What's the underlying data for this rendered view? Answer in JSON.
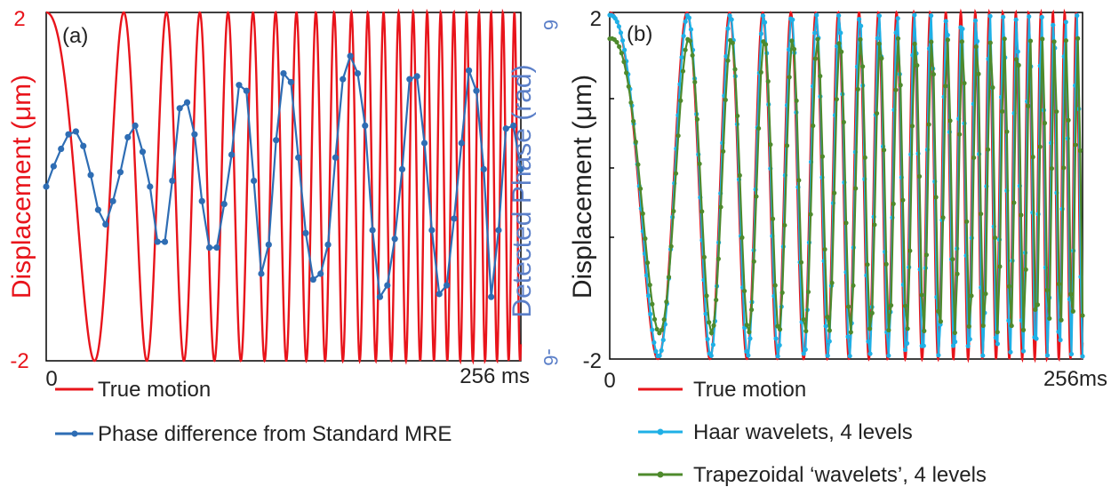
{
  "chart_data": [
    {
      "type": "line",
      "panel_label": "(a)",
      "ylabel_left": "Displacement (μm)",
      "ylabel_right": "Detected Phase (rad)",
      "x_tick_start": "0",
      "x_tick_end": "256 ms",
      "xlim": [
        0,
        256
      ],
      "ylim_left": [
        -2,
        2
      ],
      "ylim_right": [
        -6,
        6
      ],
      "y_ticks_left": [
        "2",
        "-2"
      ],
      "y_ticks_right": [
        "6",
        "-6"
      ],
      "colors": {
        "true_motion": "#e8141b",
        "phase": "#2e6db4"
      },
      "series": [
        {
          "name": "True motion",
          "kind": "chirp",
          "axis": "left",
          "amplitude": 2,
          "peaks_ms": [
            0,
            44,
            94,
            136,
            172,
            200,
            218,
            234,
            246,
            256
          ]
        },
        {
          "name": "Phase difference from Standard MRE",
          "axis": "right",
          "x": [
            0,
            4,
            8,
            12,
            16,
            20,
            24,
            28,
            32,
            36,
            40,
            44,
            48,
            52,
            56,
            60,
            64,
            68,
            72,
            76,
            80,
            84,
            88,
            92,
            96,
            100,
            104,
            108,
            112,
            116,
            120,
            124,
            128,
            132,
            136,
            140,
            144,
            148,
            152,
            156,
            160,
            164,
            168,
            172,
            176,
            180,
            184,
            188,
            192,
            196,
            200,
            204,
            208,
            212,
            216,
            220,
            224,
            228,
            232,
            236,
            240,
            244,
            248,
            252,
            256
          ],
          "y": [
            0,
            0.7,
            1.3,
            1.8,
            1.9,
            1.4,
            0.4,
            -0.8,
            -1.3,
            -0.5,
            0.5,
            1.7,
            2.1,
            1.2,
            0.0,
            -1.9,
            -1.9,
            0.2,
            2.7,
            2.9,
            1.8,
            -0.5,
            -2.1,
            -2.1,
            -0.6,
            1.1,
            3.5,
            3.3,
            0.2,
            -3.0,
            -2.0,
            1.6,
            3.9,
            3.6,
            1.0,
            -1.6,
            -3.2,
            -3.0,
            -2.0,
            1.0,
            3.7,
            4.5,
            3.9,
            2.1,
            -1.5,
            -3.8,
            -3.4,
            -1.8,
            0.6,
            3.7,
            3.8,
            1.5,
            -1.5,
            -3.7,
            -3.4,
            -1.1,
            1.5,
            4.0,
            3.3,
            0.6,
            -3.8,
            -1.5,
            2.0,
            2.1,
            0.6
          ]
        }
      ],
      "legend": [
        "True motion",
        "Phase difference from Standard MRE"
      ]
    },
    {
      "type": "line",
      "panel_label": "(b)",
      "ylabel_left": "Displacement (μm)",
      "x_tick_start": "0",
      "x_tick_end": "256ms",
      "xlim": [
        0,
        256
      ],
      "ylim_left": [
        -2,
        2
      ],
      "y_ticks_left": [
        "2",
        "-2"
      ],
      "colors": {
        "true_motion": "#e8141b",
        "haar": "#1fb0e6",
        "trapezoid": "#4e8a2c"
      },
      "series": [
        {
          "name": "True motion",
          "kind": "chirp",
          "amplitude": 2
        },
        {
          "name": "Haar wavelets, 4 levels",
          "kind": "chirp-sampled",
          "amplitude": 1.97,
          "samples": 256
        },
        {
          "name": "Trapezoidal ‘wavelets’, 4 levels",
          "kind": "chirp-sampled",
          "amplitude": 1.7,
          "samples": 200
        }
      ],
      "legend": [
        "True motion",
        "Haar wavelets, 4 levels",
        "Trapezoidal ‘wavelets’, 4 levels"
      ]
    }
  ]
}
